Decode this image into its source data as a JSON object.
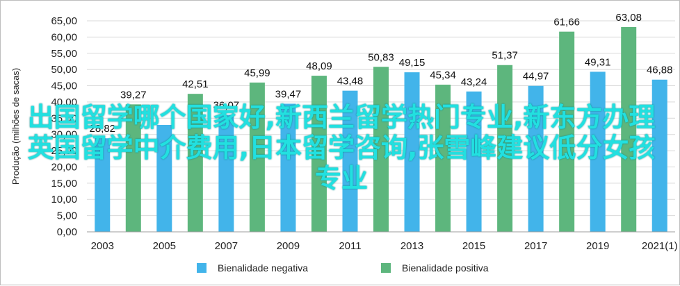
{
  "chart_data": {
    "type": "bar",
    "categories": [
      "2003",
      "",
      "2005",
      "",
      "2007",
      "",
      "2009",
      "",
      "2011",
      "",
      "2013",
      "",
      "2015",
      "",
      "2017",
      "",
      "2019",
      "",
      "2021(1)"
    ],
    "ylabel": "Produção (milhões de sacas)",
    "ylim": [
      0,
      65
    ],
    "yticks": [
      "0,00",
      "5,00",
      "10,00",
      "15,00",
      "20,00",
      "25,00",
      "30,00",
      "35,00",
      "40,00",
      "45,00",
      "50,00",
      "55,00",
      "60,00",
      "65,00"
    ],
    "grid": true,
    "legend_position": "bottom",
    "series": [
      {
        "name": "Bienalidade negativa",
        "color": "#42b4ea"
      },
      {
        "name": "Bienalidade positiva",
        "color": "#5db67d"
      }
    ],
    "bars": [
      {
        "value": 28.82,
        "label": "28,82",
        "series": 0
      },
      {
        "value": 39.27,
        "label": "39,27",
        "series": 1
      },
      {
        "value": 32.94,
        "label": "",
        "series": 0
      },
      {
        "value": 42.51,
        "label": "42,51",
        "series": 1
      },
      {
        "value": 36.07,
        "label": "36,07",
        "series": 0
      },
      {
        "value": 45.99,
        "label": "45,99",
        "series": 1
      },
      {
        "value": 39.47,
        "label": "39,47",
        "series": 0
      },
      {
        "value": 48.09,
        "label": "48,09",
        "series": 1
      },
      {
        "value": 43.48,
        "label": "43,48",
        "series": 0
      },
      {
        "value": 50.83,
        "label": "50,83",
        "series": 1
      },
      {
        "value": 49.15,
        "label": "49,15",
        "series": 0
      },
      {
        "value": 45.34,
        "label": "45,34",
        "series": 1
      },
      {
        "value": 43.24,
        "label": "43,24",
        "series": 0
      },
      {
        "value": 51.37,
        "label": "51,37",
        "series": 1
      },
      {
        "value": 44.97,
        "label": "44,97",
        "series": 0
      },
      {
        "value": 61.66,
        "label": "61,66",
        "series": 1
      },
      {
        "value": 49.31,
        "label": "49,31",
        "series": 0
      },
      {
        "value": 63.08,
        "label": "63,08",
        "series": 1
      },
      {
        "value": 46.88,
        "label": "46,88",
        "series": 0
      }
    ]
  },
  "overlay_text": "出国留学哪个国家好,新西兰留学热门专业,新东方办理英国留学中介费用,日本留学咨询,张雪峰建议低分女孩专业"
}
